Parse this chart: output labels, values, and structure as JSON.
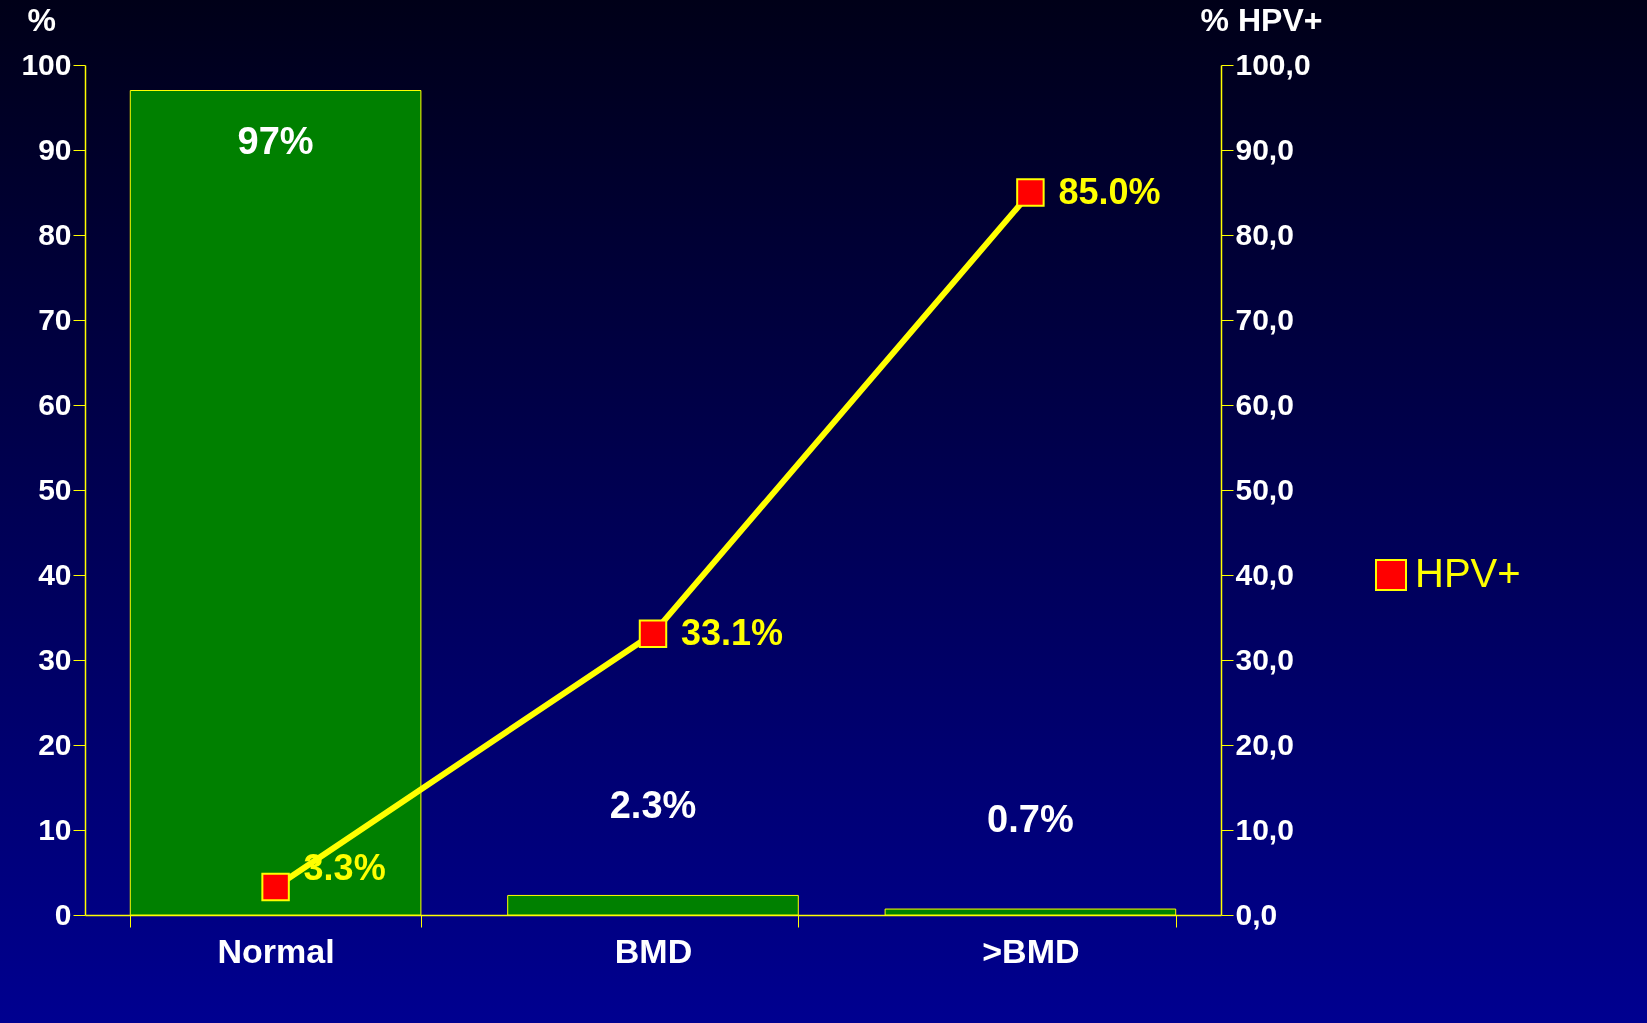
{
  "chart_data": {
    "type": "bar",
    "categories": [
      "Normal",
      "BMD",
      ">BMD"
    ],
    "ylabel": "%",
    "y2label": "% HPV+",
    "ylim": [
      0,
      100
    ],
    "yticks": [
      0,
      10,
      20,
      30,
      40,
      50,
      60,
      70,
      80,
      90,
      100
    ],
    "y2lim": [
      0,
      100
    ],
    "y2ticks": [
      {
        "value": 0,
        "label": "0,0"
      },
      {
        "value": 10,
        "label": "10,0"
      },
      {
        "value": 20,
        "label": "20,0"
      },
      {
        "value": 30,
        "label": "30,0"
      },
      {
        "value": 40,
        "label": "40,0"
      },
      {
        "value": 50,
        "label": "50,0"
      },
      {
        "value": 60,
        "label": "60,0"
      },
      {
        "value": 70,
        "label": "70,0"
      },
      {
        "value": 80,
        "label": "80,0"
      },
      {
        "value": 90,
        "label": "90,0"
      },
      {
        "value": 100,
        "label": "100,0"
      }
    ],
    "series": [
      {
        "color": "#008000",
        "values": [
          97,
          2.3,
          0.7
        ],
        "value_labels": [
          "97%",
          "2.3%",
          "0.7%"
        ]
      },
      {
        "type": "line",
        "name": "HPV+",
        "axis": "y2",
        "color": "#ff0000",
        "values": [
          3.3,
          33.1,
          85.0
        ],
        "value_labels": [
          "3.3%",
          "33.1%",
          "85.0%"
        ]
      }
    ],
    "marker": "square",
    "legend": "right",
    "grid": false
  }
}
